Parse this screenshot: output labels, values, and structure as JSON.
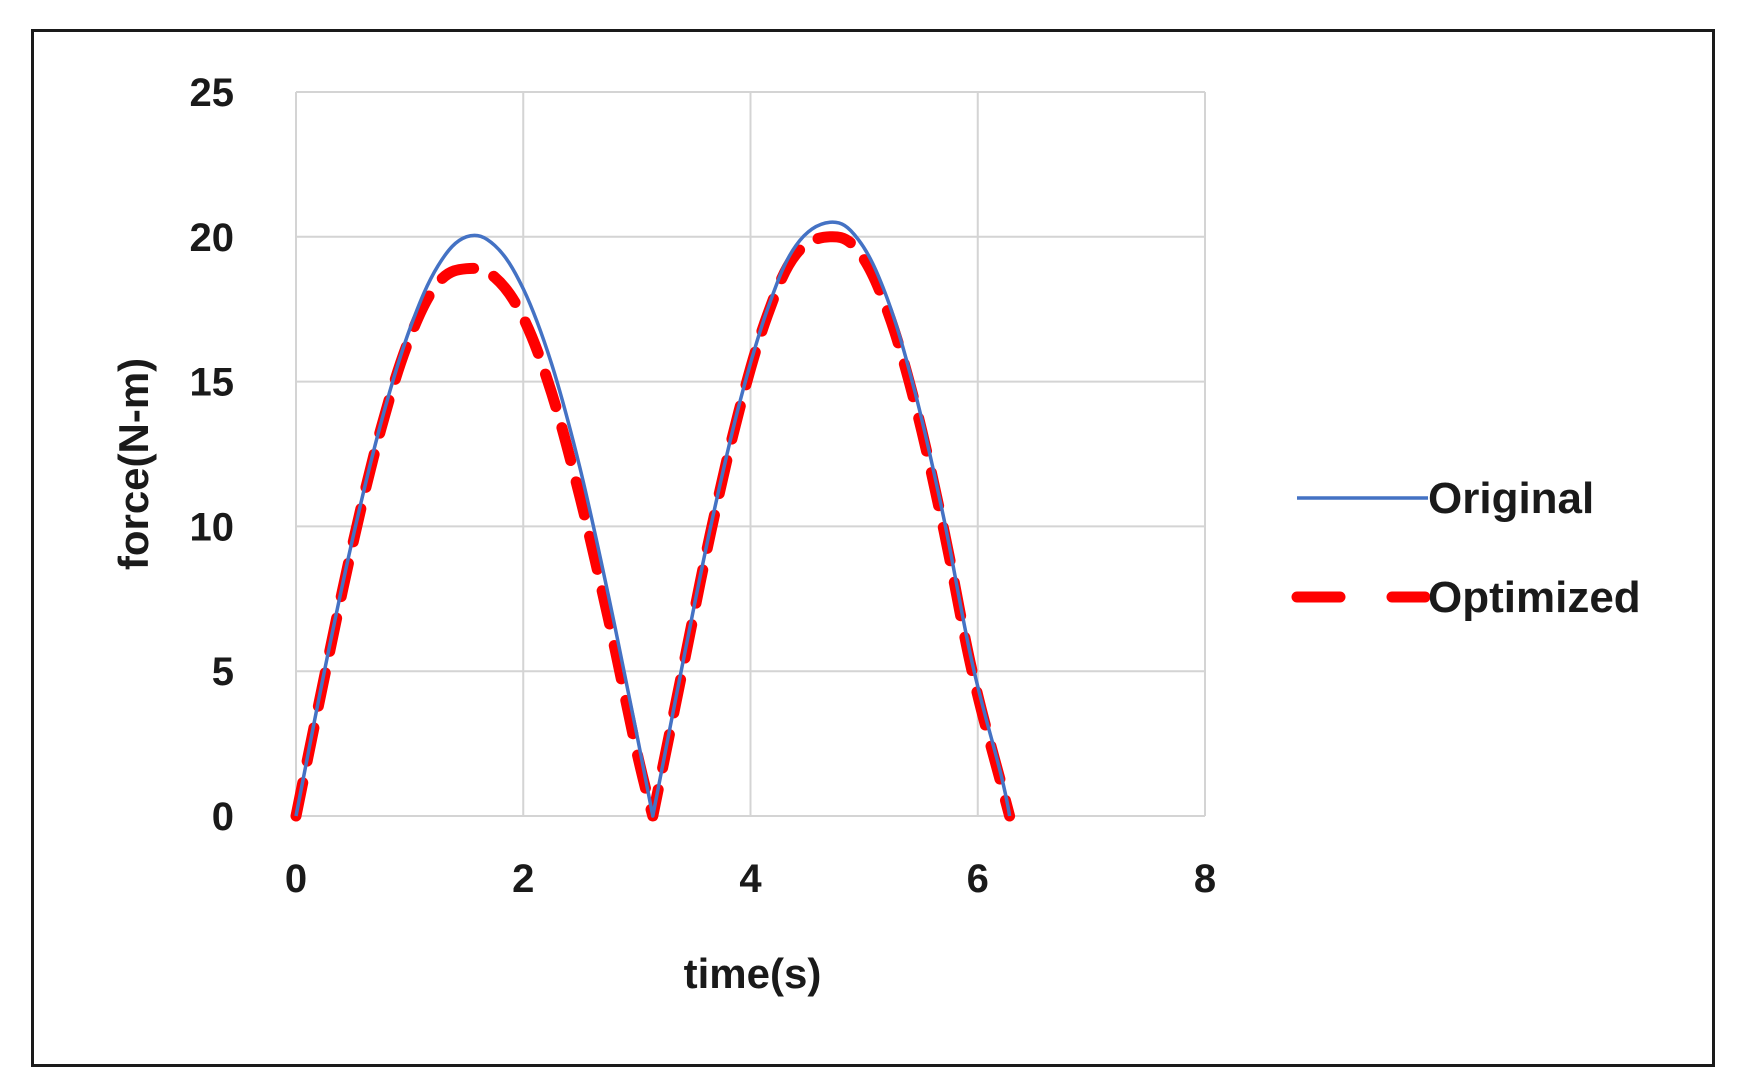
{
  "chart_data": {
    "type": "line",
    "title": "",
    "xlabel": "time(s)",
    "ylabel": "force(N-m)",
    "xlim": [
      0,
      8
    ],
    "ylim": [
      0,
      25
    ],
    "xticks": [
      0,
      2,
      4,
      6,
      8
    ],
    "yticks": [
      0,
      5,
      10,
      15,
      20,
      25
    ],
    "x_tick_labels": [
      "0",
      "2",
      "4",
      "6",
      "8"
    ],
    "y_tick_labels": [
      "0",
      "5",
      "10",
      "15",
      "20",
      "25"
    ],
    "grid": true,
    "legend_position": "right",
    "series": [
      {
        "name": "Original",
        "color": "#4472c4",
        "style": "solid",
        "x": [
          0,
          0.25,
          0.5,
          0.75,
          1.0,
          1.25,
          1.5,
          1.75,
          2.0,
          2.25,
          2.5,
          2.75,
          3.0,
          3.14,
          3.4,
          3.65,
          3.9,
          4.15,
          4.4,
          4.7,
          4.95,
          5.2,
          5.45,
          5.7,
          5.95,
          6.2,
          6.28
        ],
        "y": [
          0,
          5.0,
          9.6,
          13.6,
          16.8,
          19.0,
          20.0,
          19.7,
          18.2,
          15.6,
          12.0,
          7.6,
          2.8,
          0,
          5.2,
          10.0,
          14.2,
          17.5,
          19.7,
          20.5,
          19.9,
          17.9,
          14.6,
          10.3,
          5.3,
          1.5,
          0
        ]
      },
      {
        "name": "Optimized",
        "color": "#ff0000",
        "style": "dashed",
        "x": [
          0,
          0.25,
          0.5,
          0.75,
          1.0,
          1.25,
          1.5,
          1.75,
          2.0,
          2.25,
          2.5,
          2.75,
          3.0,
          3.14,
          3.4,
          3.65,
          3.9,
          4.15,
          4.4,
          4.7,
          4.95,
          5.2,
          5.45,
          5.7,
          5.95,
          6.2,
          6.28
        ],
        "y": [
          0,
          4.8,
          9.4,
          13.4,
          16.5,
          18.4,
          18.9,
          18.6,
          17.2,
          14.6,
          11.0,
          6.8,
          2.2,
          0,
          5.0,
          9.8,
          14.0,
          17.3,
          19.4,
          20.0,
          19.5,
          17.5,
          14.2,
          9.9,
          5.0,
          1.2,
          0
        ]
      }
    ]
  }
}
